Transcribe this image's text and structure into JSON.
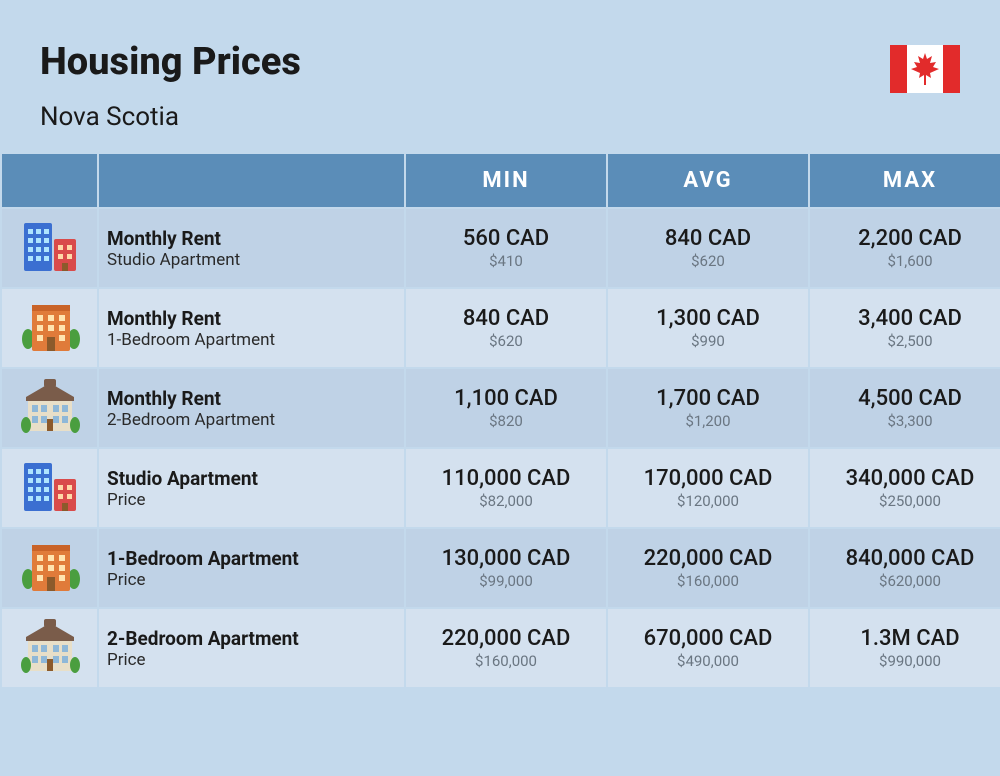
{
  "header": {
    "title": "Housing Prices",
    "subtitle": "Nova Scotia"
  },
  "columns": {
    "min": "MIN",
    "avg": "AVG",
    "max": "MAX"
  },
  "colors": {
    "page_bg": "#c3d9ec",
    "header_bg": "#5b8db8",
    "row_odd": "#bfd2e6",
    "row_even": "#d4e1ef",
    "text_primary": "#1a1a1a",
    "text_muted": "#6a7682",
    "flag_red": "#e22b2b"
  },
  "rows": [
    {
      "icon": "building-a",
      "title": "Monthly Rent",
      "sub": "Studio Apartment",
      "min_p": "560 CAD",
      "min_s": "$410",
      "avg_p": "840 CAD",
      "avg_s": "$620",
      "max_p": "2,200 CAD",
      "max_s": "$1,600"
    },
    {
      "icon": "building-b",
      "title": "Monthly Rent",
      "sub": "1-Bedroom Apartment",
      "min_p": "840 CAD",
      "min_s": "$620",
      "avg_p": "1,300 CAD",
      "avg_s": "$990",
      "max_p": "3,400 CAD",
      "max_s": "$2,500"
    },
    {
      "icon": "building-c",
      "title": "Monthly Rent",
      "sub": "2-Bedroom Apartment",
      "min_p": "1,100 CAD",
      "min_s": "$820",
      "avg_p": "1,700 CAD",
      "avg_s": "$1,200",
      "max_p": "4,500 CAD",
      "max_s": "$3,300"
    },
    {
      "icon": "building-a",
      "title": "Studio Apartment",
      "sub": "Price",
      "min_p": "110,000 CAD",
      "min_s": "$82,000",
      "avg_p": "170,000 CAD",
      "avg_s": "$120,000",
      "max_p": "340,000 CAD",
      "max_s": "$250,000"
    },
    {
      "icon": "building-b",
      "title": "1-Bedroom Apartment",
      "sub": "Price",
      "min_p": "130,000 CAD",
      "min_s": "$99,000",
      "avg_p": "220,000 CAD",
      "avg_s": "$160,000",
      "max_p": "840,000 CAD",
      "max_s": "$620,000"
    },
    {
      "icon": "building-c",
      "title": "2-Bedroom Apartment",
      "sub": "Price",
      "min_p": "220,000 CAD",
      "min_s": "$160,000",
      "avg_p": "670,000 CAD",
      "avg_s": "$490,000",
      "max_p": "1.3M CAD",
      "max_s": "$990,000"
    }
  ]
}
